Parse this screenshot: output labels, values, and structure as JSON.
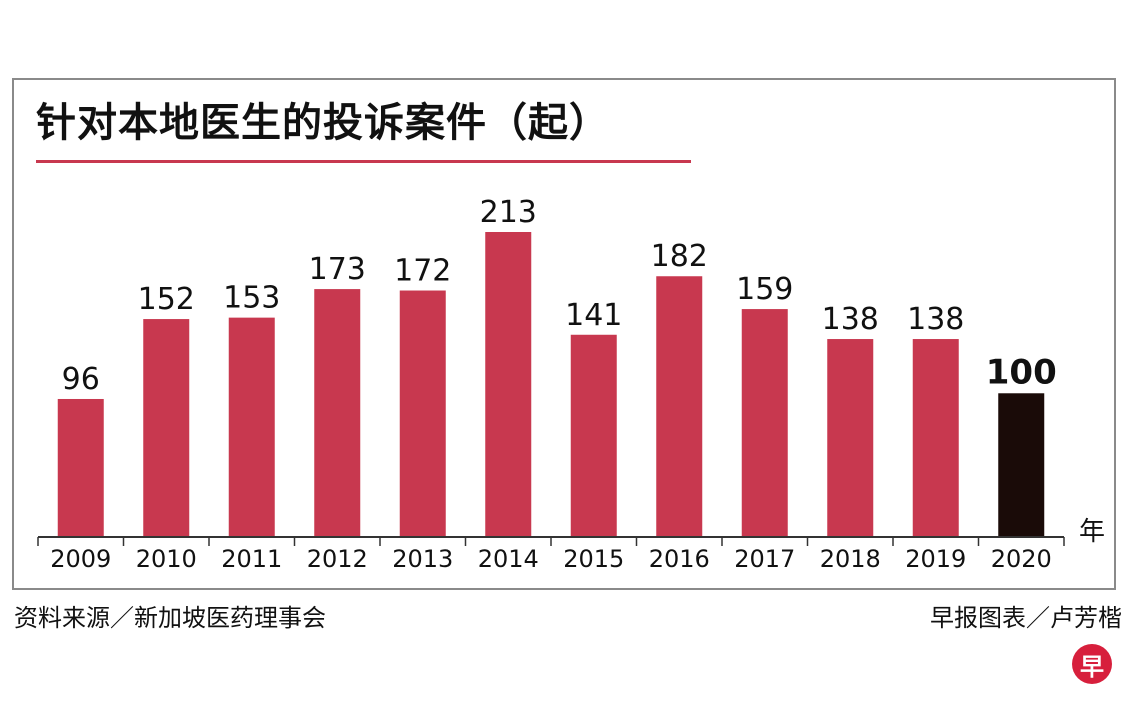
{
  "chart_data": {
    "type": "bar",
    "title": "针对本地医生的投诉案件（起）",
    "categories": [
      "2009",
      "2010",
      "2011",
      "2012",
      "2013",
      "2014",
      "2015",
      "2016",
      "2017",
      "2018",
      "2019",
      "2020"
    ],
    "values": [
      96,
      152,
      153,
      173,
      172,
      213,
      141,
      182,
      159,
      138,
      138,
      100
    ],
    "xlabel": "年",
    "ylabel": "",
    "ylim": [
      0,
      220
    ],
    "grid": false,
    "colors": {
      "bar": "#c8384f",
      "highlight": "#1a0b08",
      "axis": "#333333"
    },
    "highlight_index": 11
  },
  "footer": {
    "source": "资料来源／新加坡医药理事会",
    "credit": "早报图表／卢芳楷"
  },
  "logo": {
    "char": "早",
    "color": "#d71f3c"
  }
}
